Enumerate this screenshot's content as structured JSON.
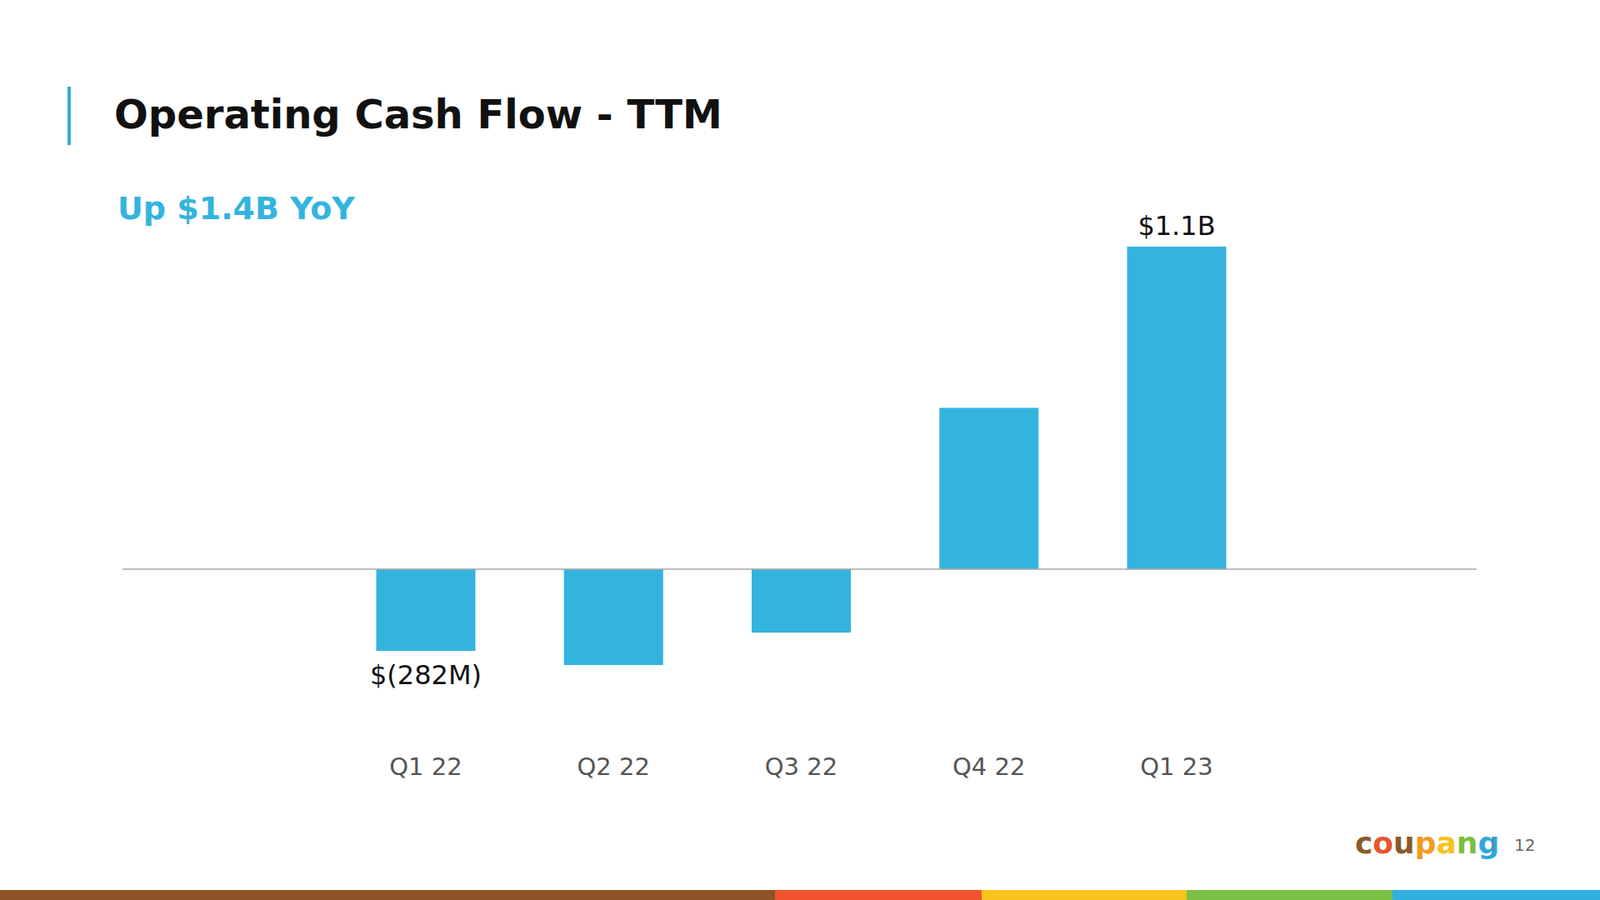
{
  "chart_data": {
    "type": "bar",
    "title": "Operating Cash Flow - TTM",
    "subtitle": "Up $1.4B YoY",
    "categories": [
      "Q1 22",
      "Q2 22",
      "Q3 22",
      "Q4 22",
      "Q1 23"
    ],
    "values": [
      -282,
      -331,
      -219,
      557,
      1114
    ],
    "value_labels": [
      "$(282M)",
      null,
      null,
      null,
      "$1.1B"
    ],
    "color": "#33b4de",
    "ylim": [
      -400,
      1200
    ],
    "data_labels": true,
    "tick_labels": "x",
    "grid": false
  },
  "footer": {
    "logo": "coupang",
    "page_number": "12"
  }
}
